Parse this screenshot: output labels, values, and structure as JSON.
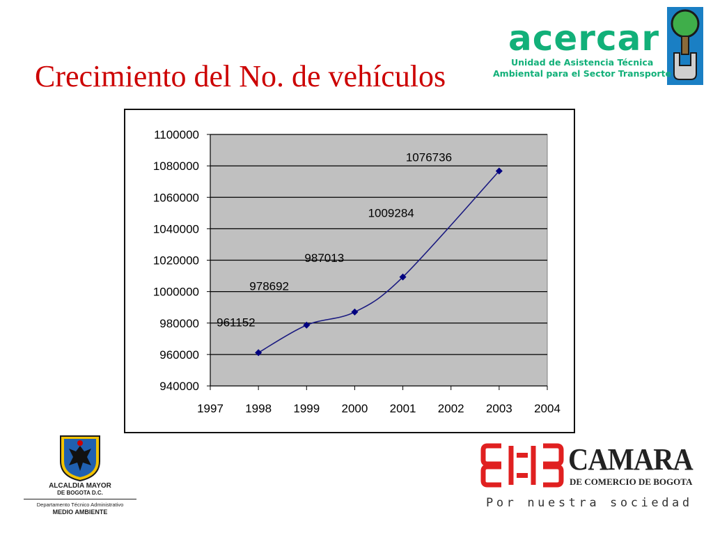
{
  "slide": {
    "title": "Crecimiento del No. de vehículos"
  },
  "logos": {
    "acercar": {
      "word": "acercar",
      "line1": "Unidad de Asistencia Técnica",
      "line2": "Ambiental para el Sector Transporte",
      "color": "#12b079"
    },
    "alcaldia": {
      "line1": "ALCALDIA MAYOR",
      "line2": "DE BOGOTA D.C.",
      "line3": "Departamento Técnico Administrativo",
      "line4": "MEDIO AMBIENTE"
    },
    "camara": {
      "name": "CAMARA",
      "sub": "DE COMERCIO DE BOGOTA",
      "slogan": "Por nuestra sociedad",
      "color": "#e02020"
    }
  },
  "chart_data": {
    "type": "line",
    "title": "",
    "xlabel": "",
    "ylabel": "",
    "x": [
      1998,
      1999,
      2000,
      2001,
      2003
    ],
    "values": [
      961152,
      978692,
      987013,
      1009284,
      1076736
    ],
    "data_labels": [
      "961152",
      "978692",
      "987013",
      "1009284",
      "1076736"
    ],
    "xlim": [
      1997,
      2004
    ],
    "ylim": [
      940000,
      1100000
    ],
    "x_ticks": [
      "1997",
      "1998",
      "1999",
      "2000",
      "2001",
      "2002",
      "2003",
      "2004"
    ],
    "y_ticks": [
      "940000",
      "960000",
      "980000",
      "1000000",
      "1020000",
      "1040000",
      "1060000",
      "1080000",
      "1100000"
    ],
    "grid": true,
    "legend": "none",
    "colors": {
      "line": "#1a1a80",
      "marker": "#000080",
      "plot_bg": "#c0c0c0",
      "grid": "#000000"
    }
  }
}
